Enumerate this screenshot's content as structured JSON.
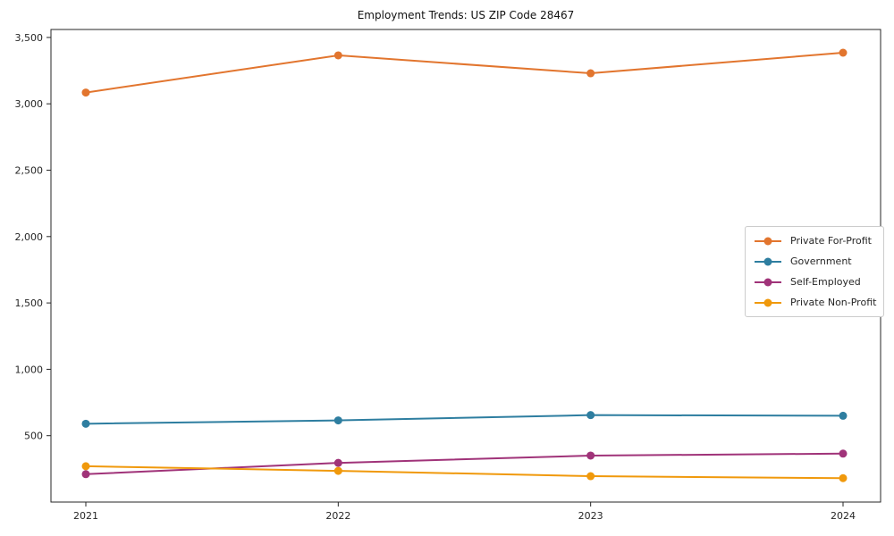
{
  "chart_data": {
    "type": "line",
    "title": "Employment Trends: US ZIP Code 28467",
    "x": [
      "2021",
      "2022",
      "2023",
      "2024"
    ],
    "series": [
      {
        "name": "Private For-Profit",
        "color": "#e2752e",
        "values": [
          3085,
          3365,
          3230,
          3385
        ]
      },
      {
        "name": "Government",
        "color": "#2e7ea0",
        "values": [
          590,
          615,
          655,
          650
        ]
      },
      {
        "name": "Self-Employed",
        "color": "#a03379",
        "values": [
          210,
          295,
          350,
          365
        ]
      },
      {
        "name": "Private Non-Profit",
        "color": "#f0990c",
        "values": [
          270,
          235,
          195,
          180
        ]
      }
    ],
    "xlabel": "",
    "ylabel": "",
    "ylim": [
      0,
      3560
    ],
    "yticks": [
      500,
      1000,
      1500,
      2000,
      2500,
      3000,
      3500
    ],
    "grid": false,
    "legend_position": "center-right",
    "marker": "circle",
    "axis_color": "#262626",
    "background_color": "#ffffff"
  }
}
